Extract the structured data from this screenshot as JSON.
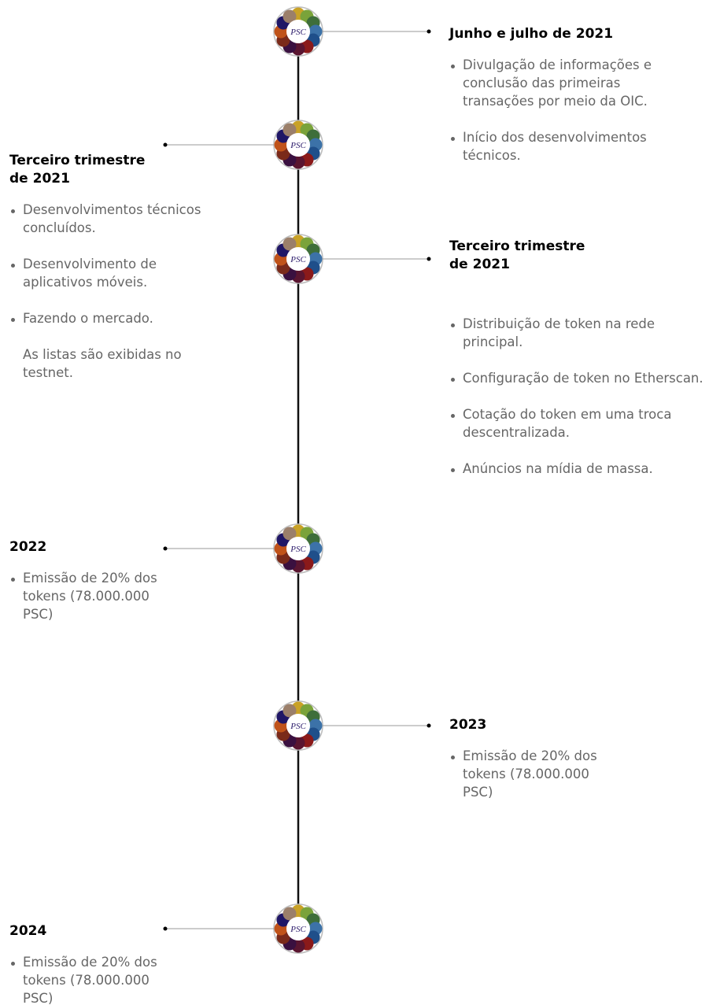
{
  "logo_text": "PSC",
  "milestones": [
    {
      "side": "right",
      "title": "Junho e julho de 2021",
      "items": [
        "Divulgação de informações e conclusão das primeiras transações por meio da OIC.",
        "Início dos desenvolvimentos técnicos."
      ]
    },
    {
      "side": "left",
      "title": "Terceiro trimestre de 2021",
      "items": [
        "Desenvolvimentos técnicos concluídos.",
        "Desenvolvimento de aplicativos móveis.",
        "Fazendo o mercado."
      ],
      "note": "As listas são exibidas no testnet."
    },
    {
      "side": "right",
      "title": "Terceiro trimestre de 2021",
      "items": [
        "Distribuição de token na rede principal.",
        "Configuração de token no Etherscan.",
        "Cotação do token em uma troca descentralizada.",
        "Anúncios na mídia de massa."
      ]
    },
    {
      "side": "left",
      "title": "2022",
      "items": [
        "Emissão de 20% dos tokens (78.000.000 PSC)"
      ]
    },
    {
      "side": "right",
      "title": "2023",
      "items": [
        "Emissão de 20% dos tokens (78.000.000 PSC)"
      ]
    },
    {
      "side": "left",
      "title": "2024",
      "items": [
        "Emissão de 20% dos tokens (78.000.000 PSC)"
      ]
    }
  ]
}
